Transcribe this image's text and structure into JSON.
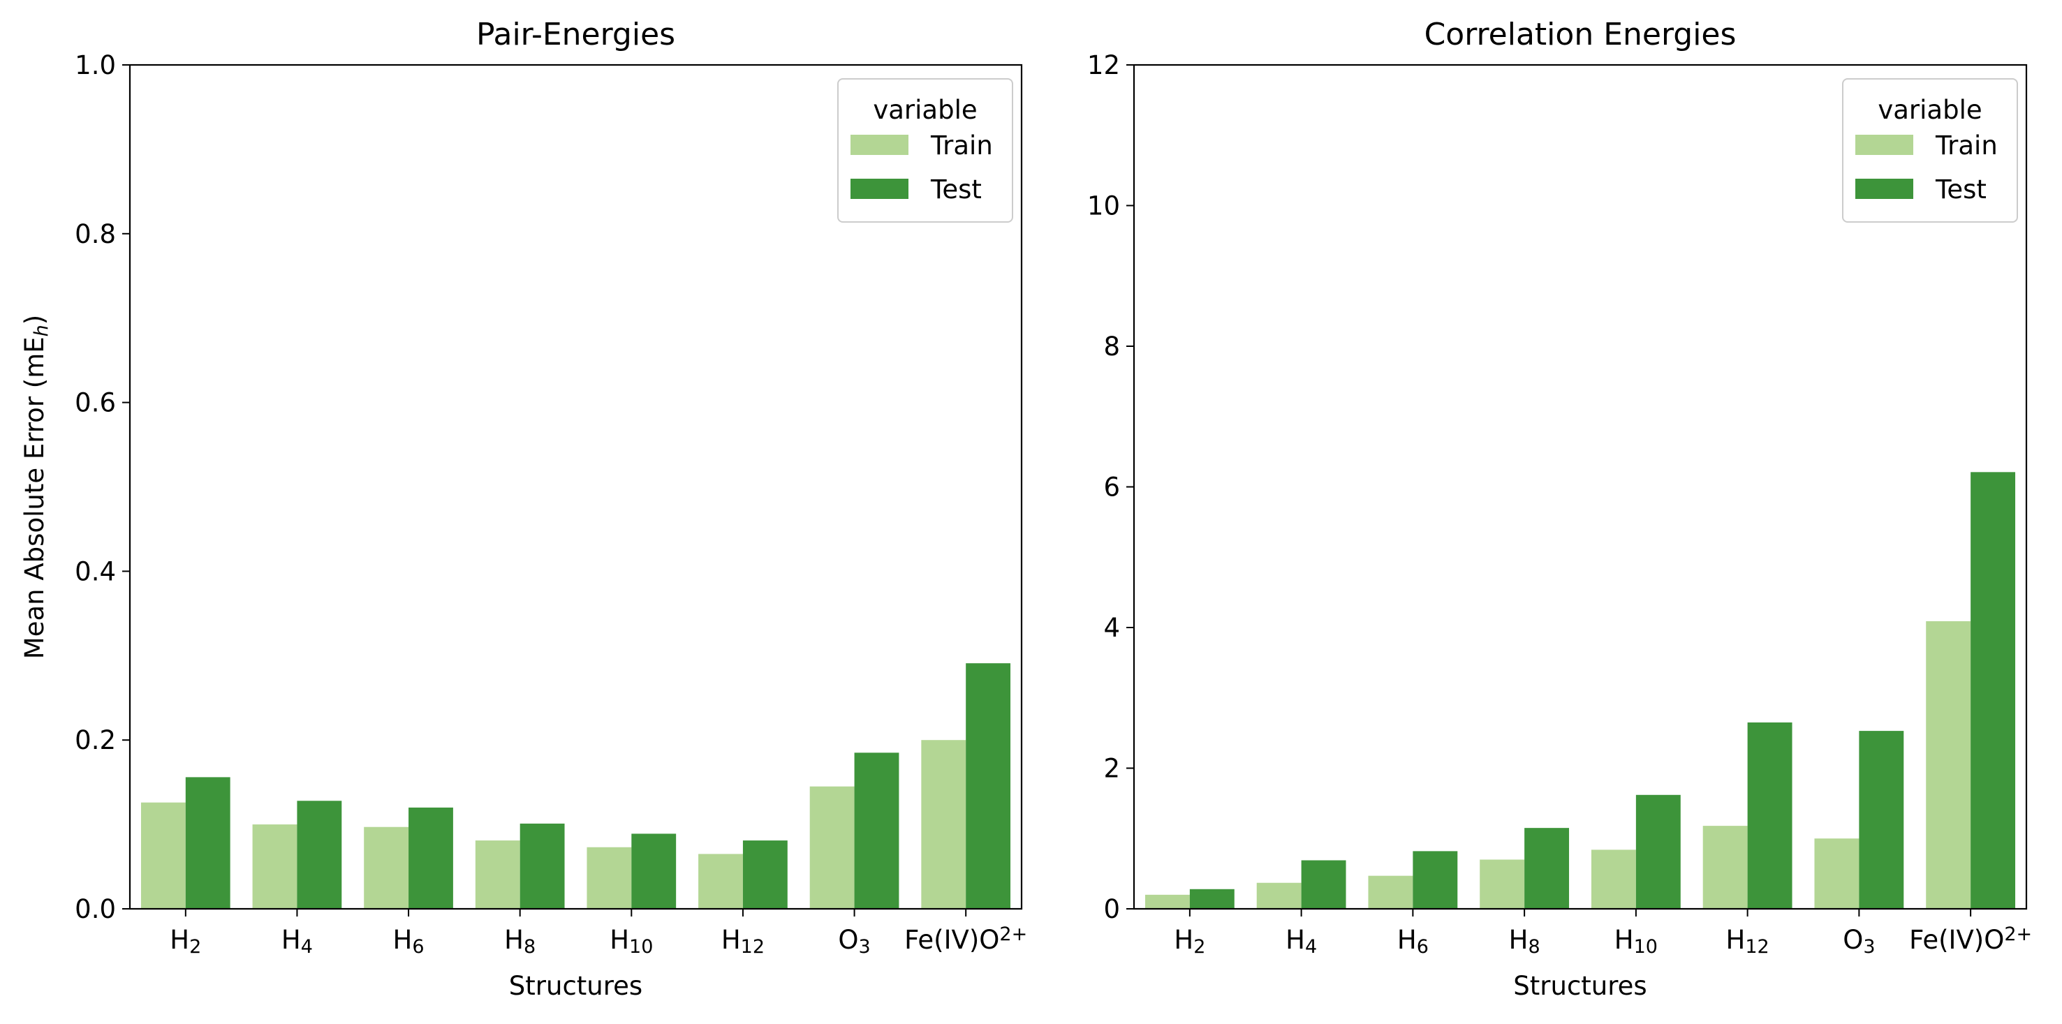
{
  "colors": {
    "train": "#b3d694",
    "test": "#3d943a",
    "axis": "#000000",
    "legend_border": "#cccccc"
  },
  "chart_data": [
    {
      "type": "bar",
      "title": "Pair-Energies",
      "xlabel": "Structures",
      "ylabel": "Mean Absolute Error (mE",
      "ylabel_sub": "h",
      "ylabel_close": ")",
      "ylim": [
        0,
        1.0
      ],
      "yticks": [
        0.0,
        0.2,
        0.4,
        0.6,
        0.8,
        1.0
      ],
      "ytick_labels": [
        "0.0",
        "0.2",
        "0.4",
        "0.6",
        "0.8",
        "1.0"
      ],
      "categories": [
        {
          "base": "H",
          "sub": "2",
          "sup": ""
        },
        {
          "base": "H",
          "sub": "4",
          "sup": ""
        },
        {
          "base": "H",
          "sub": "6",
          "sup": ""
        },
        {
          "base": "H",
          "sub": "8",
          "sup": ""
        },
        {
          "base": "H",
          "sub": "10",
          "sup": ""
        },
        {
          "base": "H",
          "sub": "12",
          "sup": ""
        },
        {
          "base": "O",
          "sub": "3",
          "sup": ""
        },
        {
          "base": "Fe(IV)O",
          "sub": "",
          "sup": "2+"
        }
      ],
      "series": [
        {
          "name": "Train",
          "values": [
            0.126,
            0.1,
            0.097,
            0.081,
            0.073,
            0.065,
            0.145,
            0.2
          ]
        },
        {
          "name": "Test",
          "values": [
            0.156,
            0.128,
            0.12,
            0.101,
            0.089,
            0.081,
            0.185,
            0.291
          ]
        }
      ],
      "legend": {
        "title": "variable",
        "position": "top-right"
      },
      "grid": false
    },
    {
      "type": "bar",
      "title": "Correlation Energies",
      "xlabel": "Structures",
      "ylabel": "",
      "ylim": [
        0,
        12
      ],
      "yticks": [
        0,
        2,
        4,
        6,
        8,
        10,
        12
      ],
      "ytick_labels": [
        "0",
        "2",
        "4",
        "6",
        "8",
        "10",
        "12"
      ],
      "categories": [
        {
          "base": "H",
          "sub": "2",
          "sup": ""
        },
        {
          "base": "H",
          "sub": "4",
          "sup": ""
        },
        {
          "base": "H",
          "sub": "6",
          "sup": ""
        },
        {
          "base": "H",
          "sub": "8",
          "sup": ""
        },
        {
          "base": "H",
          "sub": "10",
          "sup": ""
        },
        {
          "base": "H",
          "sub": "12",
          "sup": ""
        },
        {
          "base": "O",
          "sub": "3",
          "sup": ""
        },
        {
          "base": "Fe(IV)O",
          "sub": "",
          "sup": "2+"
        }
      ],
      "series": [
        {
          "name": "Train",
          "values": [
            0.2,
            0.37,
            0.47,
            0.7,
            0.84,
            1.18,
            1.0,
            4.09
          ]
        },
        {
          "name": "Test",
          "values": [
            0.28,
            0.69,
            0.82,
            1.15,
            1.62,
            2.65,
            2.53,
            6.21
          ]
        }
      ],
      "legend": {
        "title": "variable",
        "position": "top-right"
      },
      "grid": false
    }
  ]
}
